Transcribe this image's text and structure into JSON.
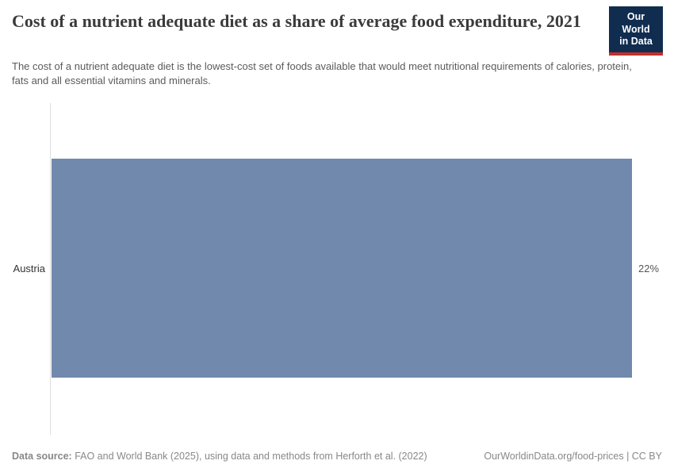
{
  "header": {
    "title": "Cost of a nutrient adequate diet as a share of average food expenditure, 2021",
    "subtitle": "The cost of a nutrient adequate diet is the lowest-cost set of foods available that would meet nutritional requirements of calories, protein, fats and all essential vitamins and minerals.",
    "logo": {
      "line1": "Our World",
      "line2": "in Data"
    }
  },
  "chart_data": {
    "type": "bar",
    "orientation": "horizontal",
    "title": "Cost of a nutrient adequate diet as a share of average food expenditure, 2021",
    "categories": [
      "Austria"
    ],
    "values": [
      22
    ],
    "value_labels": [
      "22%"
    ],
    "unit": "%",
    "xlim": [
      0,
      22
    ],
    "grid": false,
    "legend": "none",
    "bar_color": "#7189ad",
    "axis_line_color": "#dedede"
  },
  "footer": {
    "source_label": "Data source:",
    "source_text": " FAO and World Bank (2025), using data and methods from Herforth et al. (2022)",
    "credit": "OurWorldinData.org/food-prices | CC BY"
  },
  "colors": {
    "title": "#3b3b3b",
    "subtitle": "#5b5b5b",
    "logo_background": "#102d50",
    "logo_accent": "#c0302e",
    "footer_text": "#888888"
  }
}
